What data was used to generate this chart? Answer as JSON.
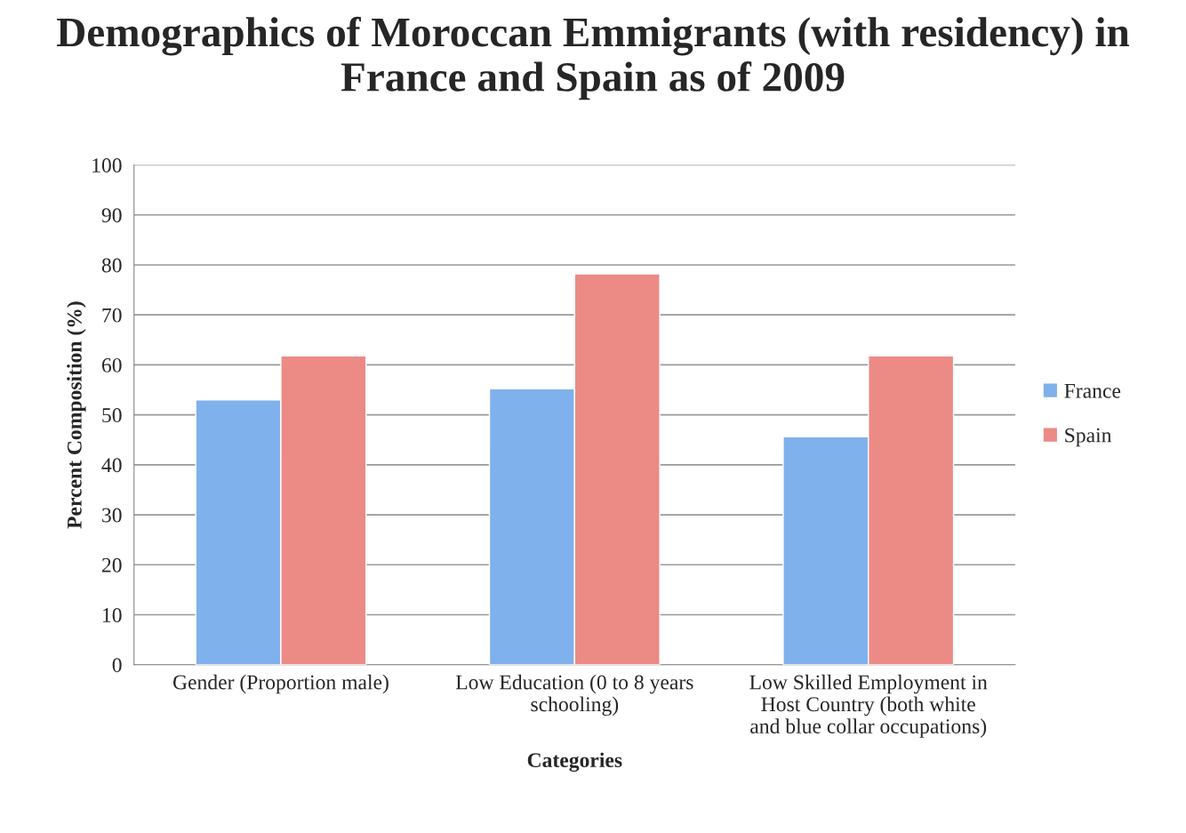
{
  "chart_data": {
    "type": "bar",
    "title": "Demographics of Moroccan Emmigrants (with residency) in France and Spain as of 2009",
    "xlabel": "Categories",
    "ylabel": "Percent Composition (%)",
    "categories": [
      "Gender (Proportion male)",
      "Low Education (0 to 8 years\nschooling)",
      "Low Skilled Employment in\nHost Country (both white\nand blue collar occupations)"
    ],
    "series": [
      {
        "name": "France",
        "color": "#7fb1ec",
        "values": [
          53,
          55.2,
          45.6
        ]
      },
      {
        "name": "Spain",
        "color": "#ec8a86",
        "values": [
          61.8,
          78.2,
          61.8
        ]
      }
    ],
    "ylim": [
      0,
      100
    ],
    "yticks": [
      0,
      10,
      20,
      30,
      40,
      50,
      60,
      70,
      80,
      90,
      100
    ],
    "grid": "y",
    "legend": "right"
  }
}
